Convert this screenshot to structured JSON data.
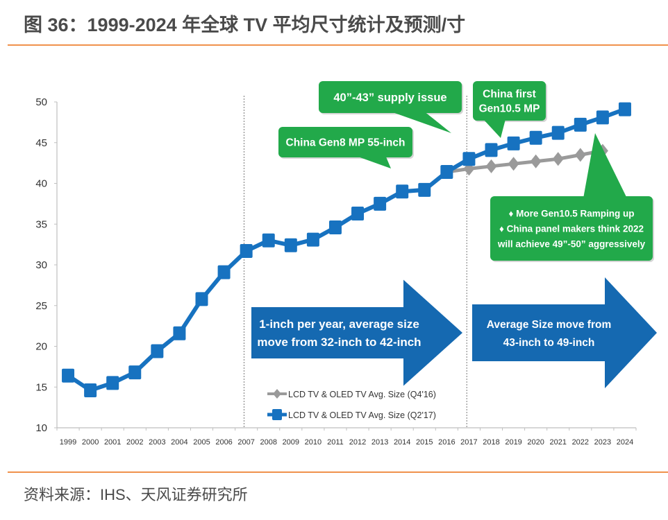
{
  "header": {
    "title": "图 36：1999-2024 年全球 TV 平均尺寸统计及预测/寸"
  },
  "footer": {
    "source": "资料来源：IHS、天风证券研究所"
  },
  "colors": {
    "accent_rule": "#f0914b",
    "series_blue": "#1772c0",
    "series_gray": "#9a9a9a",
    "callout_green": "#22a94a",
    "arrow_blue": "#1569b1"
  },
  "chart_data": {
    "type": "line",
    "title": "1999-2024 年全球 TV 平均尺寸统计及预测/寸",
    "xlabel": "",
    "ylabel": "",
    "ylim": [
      10,
      50
    ],
    "yticks": [
      10,
      15,
      20,
      25,
      30,
      35,
      40,
      45,
      50
    ],
    "grid": false,
    "legend_position": "bottom-center",
    "categories": [
      "1999",
      "2000",
      "2001",
      "2002",
      "2003",
      "2004",
      "2005",
      "2006",
      "2007",
      "2008",
      "2009",
      "2010",
      "2011",
      "2012",
      "2013",
      "2014",
      "2015",
      "2016",
      "2017",
      "2018",
      "2019",
      "2020",
      "2021",
      "2022",
      "2023",
      "2024"
    ],
    "series": [
      {
        "name": "LCD TV & OLED TV  Avg. Size (Q4'16)",
        "marker": "diamond",
        "color": "#9a9a9a",
        "values": [
          null,
          null,
          null,
          null,
          null,
          null,
          null,
          null,
          null,
          null,
          null,
          null,
          null,
          null,
          null,
          null,
          null,
          41.4,
          41.8,
          42.1,
          42.4,
          42.7,
          43.0,
          43.5,
          44.0,
          null
        ]
      },
      {
        "name": "LCD TV & OLED TV  Avg. Size (Q2'17)",
        "marker": "square",
        "color": "#1772c0",
        "values": [
          16.4,
          14.6,
          15.5,
          16.8,
          19.4,
          21.6,
          25.8,
          29.1,
          31.7,
          33.0,
          32.4,
          33.1,
          34.6,
          36.3,
          37.5,
          39.0,
          39.2,
          41.4,
          43.0,
          44.1,
          44.9,
          45.6,
          46.2,
          47.2,
          48.1,
          49.1
        ]
      }
    ],
    "reference_lines": [
      {
        "at_category": "2007",
        "style": "dotted"
      },
      {
        "at_category": "2017",
        "style": "dotted"
      }
    ],
    "annotations": [
      {
        "id": "supply",
        "lines": [
          "40”-43” supply issue"
        ]
      },
      {
        "id": "gen8",
        "lines": [
          "China Gen8 MP 55-inch"
        ]
      },
      {
        "id": "gen105",
        "lines": [
          "China first",
          "Gen10.5 MP"
        ]
      },
      {
        "id": "ramp",
        "lines": [
          "♦ More Gen10.5 Ramping up",
          "♦  China panel makers think 2022",
          "will achieve 49”-50” aggressively"
        ]
      },
      {
        "id": "arrow1",
        "lines": [
          "1-inch per year, average size",
          "move from 32-inch to 42-inch"
        ]
      },
      {
        "id": "arrow2",
        "lines": [
          "Average Size move from",
          "43-inch to 49-inch"
        ]
      }
    ]
  }
}
